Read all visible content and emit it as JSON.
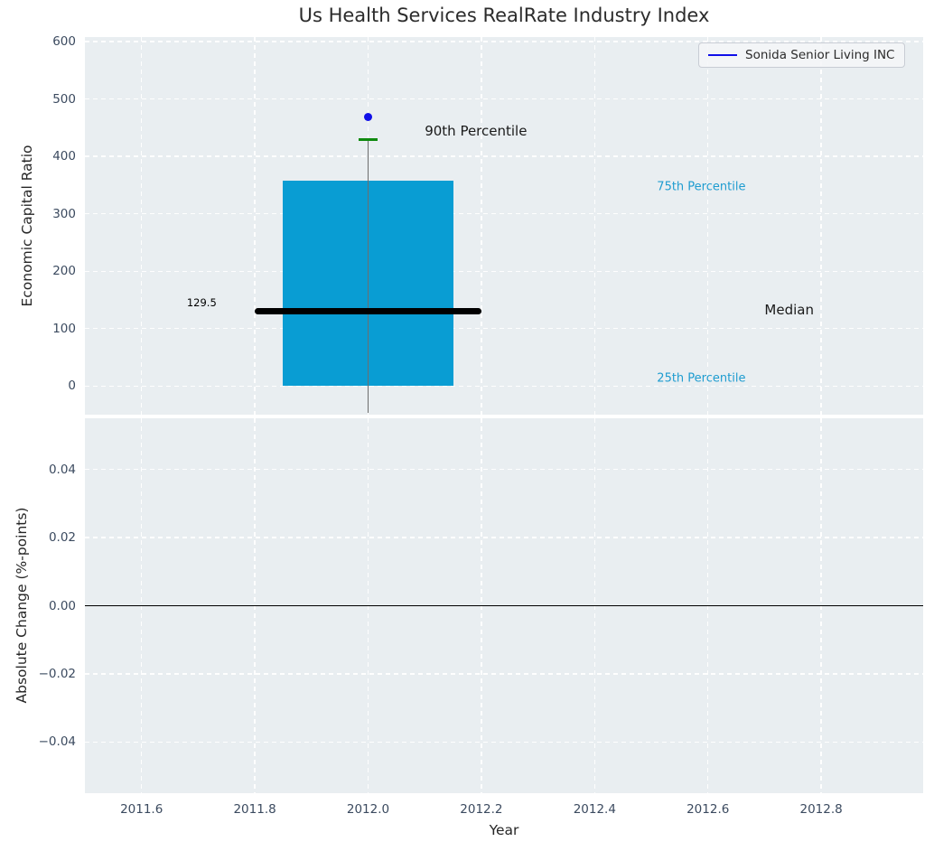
{
  "title": "Us Health Services RealRate Industry Index",
  "legend": {
    "label": "Sonida Senior Living INC",
    "line_color": "#0f0fe8"
  },
  "colors": {
    "axes_bg": "#e9eef1",
    "grid": "#ffffff",
    "box_fill": "#099dd3",
    "median_line": "#000000",
    "whisker_line": "#6e6e6e",
    "p90_marker": "#0f8a0f",
    "company_dot": "#0f0fe8",
    "percentile_label": "#1e9cd0",
    "tick_label": "#3b4a5f",
    "zero_line": "#000000"
  },
  "chart_data": [
    {
      "type": "boxplot",
      "title": "Us Health Services RealRate Industry Index",
      "ylabel": "Economic Capital Ratio",
      "xlim": [
        2011.5,
        2012.98
      ],
      "ylim": [
        -50,
        608
      ],
      "grid": true,
      "legend_position": "upper right",
      "xticks": [
        2011.6,
        2011.8,
        2012.0,
        2012.2,
        2012.4,
        2012.6,
        2012.8
      ],
      "xtick_labels": [],
      "yticks": [
        600,
        500,
        400,
        300,
        200,
        100,
        0
      ],
      "ytick_labels": [
        "600",
        "500",
        "400",
        "300",
        "200",
        "100",
        "0"
      ],
      "box": {
        "x": 2012.0,
        "q25": 0,
        "median": 129.5,
        "q75": 357,
        "p90": 430,
        "whisker_low": -47,
        "box_half_width": 0.15,
        "median_half_width": 0.2,
        "p90_half_width": 0.017
      },
      "company_point": {
        "name": "Sonida Senior Living INC",
        "x": 2012.0,
        "y": 469
      },
      "annotations": [
        {
          "text": "129.5",
          "x": 2011.68,
          "y": 145,
          "size": 11.5,
          "color": "#000000"
        },
        {
          "text": "90th Percentile",
          "x": 2012.1,
          "y": 445,
          "size": 15,
          "color": "#1a1a1a"
        },
        {
          "text": "75th Percentile",
          "x": 2012.51,
          "y": 346,
          "size": 13,
          "color": "#1e9cd0"
        },
        {
          "text": "Median",
          "x": 2012.7,
          "y": 132,
          "size": 15,
          "color": "#1a1a1a"
        },
        {
          "text": "25th Percentile",
          "x": 2012.51,
          "y": 12.5,
          "size": 13,
          "color": "#1e9cd0"
        }
      ]
    },
    {
      "type": "line",
      "ylabel": "Absolute Change (%-points)",
      "xlabel": "Year",
      "xlim": [
        2011.5,
        2012.98
      ],
      "ylim": [
        -0.055,
        0.055
      ],
      "grid": true,
      "xticks": [
        2011.6,
        2011.8,
        2012.0,
        2012.2,
        2012.4,
        2012.6,
        2012.8
      ],
      "xtick_labels": [
        "2011.6",
        "2011.8",
        "2012.0",
        "2012.2",
        "2012.4",
        "2012.6",
        "2012.8"
      ],
      "yticks": [
        0.04,
        0.02,
        0.0,
        -0.02,
        -0.04
      ],
      "ytick_labels": [
        "0.04",
        "0.02",
        "0.00",
        "−0.02",
        "−0.04"
      ],
      "zero_line": 0.0,
      "series": []
    }
  ]
}
